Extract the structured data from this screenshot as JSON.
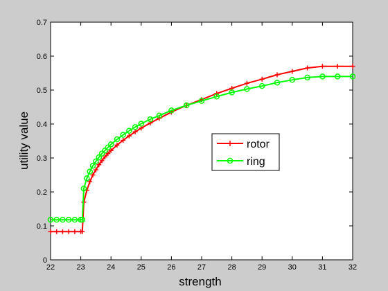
{
  "chart_data": {
    "type": "line",
    "xlabel": "strength",
    "ylabel": "utility value",
    "xlim": [
      22,
      32
    ],
    "ylim": [
      0,
      0.7
    ],
    "xticks": [
      "22",
      "23",
      "24",
      "25",
      "26",
      "27",
      "28",
      "29",
      "30",
      "31",
      "32"
    ],
    "yticks": [
      "0",
      "0.1",
      "0.2",
      "0.3",
      "0.4",
      "0.5",
      "0.6",
      "0.7"
    ],
    "grid": false,
    "legend_position": "center-right",
    "series": [
      {
        "name": "rotor",
        "color": "#ff0000",
        "marker": "plus",
        "x": [
          22.0,
          22.2,
          22.4,
          22.6,
          22.8,
          23.0,
          23.05,
          23.1,
          23.2,
          23.3,
          23.4,
          23.5,
          23.6,
          23.7,
          23.8,
          23.9,
          24.0,
          24.2,
          24.4,
          24.6,
          24.8,
          25.0,
          25.3,
          25.6,
          26.0,
          26.5,
          27.0,
          27.5,
          28.0,
          28.5,
          29.0,
          29.5,
          30.0,
          30.5,
          31.0,
          31.5,
          32.0
        ],
        "y": [
          0.083,
          0.083,
          0.083,
          0.083,
          0.083,
          0.083,
          0.083,
          0.17,
          0.205,
          0.23,
          0.25,
          0.265,
          0.28,
          0.292,
          0.303,
          0.313,
          0.322,
          0.338,
          0.352,
          0.365,
          0.377,
          0.388,
          0.403,
          0.417,
          0.435,
          0.455,
          0.472,
          0.49,
          0.505,
          0.52,
          0.532,
          0.545,
          0.555,
          0.565,
          0.57,
          0.57,
          0.57
        ]
      },
      {
        "name": "ring",
        "color": "#00ff00",
        "marker": "circle",
        "x": [
          22.0,
          22.2,
          22.4,
          22.6,
          22.8,
          23.0,
          23.05,
          23.1,
          23.2,
          23.3,
          23.4,
          23.5,
          23.6,
          23.7,
          23.8,
          23.9,
          24.0,
          24.2,
          24.4,
          24.6,
          24.8,
          25.0,
          25.3,
          25.6,
          26.0,
          26.5,
          27.0,
          27.5,
          28.0,
          28.5,
          29.0,
          29.5,
          30.0,
          30.5,
          31.0,
          31.5,
          32.0
        ],
        "y": [
          0.118,
          0.118,
          0.118,
          0.118,
          0.118,
          0.118,
          0.118,
          0.21,
          0.24,
          0.26,
          0.277,
          0.29,
          0.302,
          0.313,
          0.322,
          0.331,
          0.34,
          0.355,
          0.368,
          0.38,
          0.391,
          0.401,
          0.414,
          0.425,
          0.44,
          0.455,
          0.468,
          0.481,
          0.493,
          0.503,
          0.512,
          0.522,
          0.53,
          0.537,
          0.54,
          0.54,
          0.54
        ]
      }
    ]
  }
}
